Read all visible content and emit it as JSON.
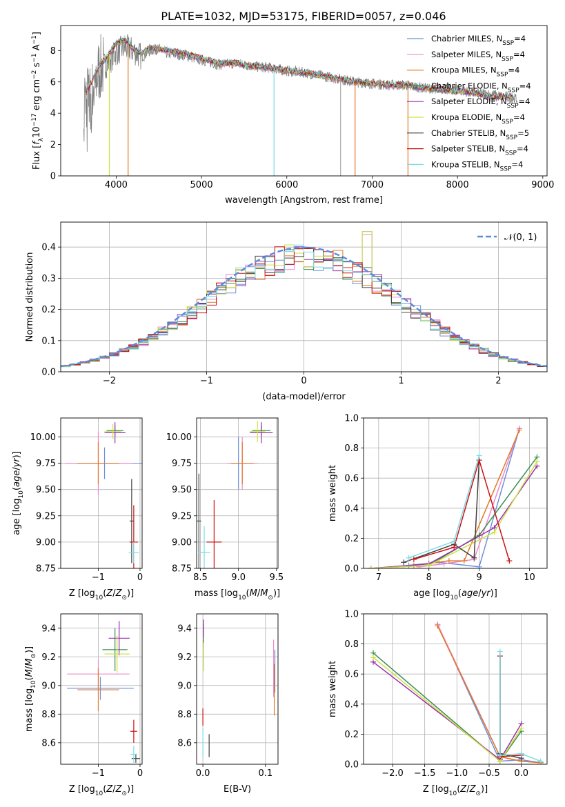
{
  "figure_title": "PLATE=1032, MJD=53175, FIBERID=0057, z=0.046",
  "models": [
    {
      "name": "Chabrier MILES",
      "nssp": "4",
      "color": "#6f8fdc"
    },
    {
      "name": "Salpeter MILES",
      "nssp": "4",
      "color": "#ee88c8"
    },
    {
      "name": "Kroupa MILES",
      "nssp": "4",
      "color": "#e07828"
    },
    {
      "name": "Chabrier ELODIE",
      "nssp": "4",
      "color": "#3c8c50"
    },
    {
      "name": "Salpeter ELODIE",
      "nssp": "4",
      "color": "#9a2fb0"
    },
    {
      "name": "Kroupa ELODIE",
      "nssp": "4",
      "color": "#cce040"
    },
    {
      "name": "Chabrier STELIB",
      "nssp": "5",
      "color": "#404040"
    },
    {
      "name": "Salpeter STELIB",
      "nssp": "4",
      "color": "#cc1010"
    },
    {
      "name": "Kroupa STELIB",
      "nssp": "4",
      "color": "#7adce6"
    }
  ],
  "chart_data": [
    {
      "id": "spectrum",
      "type": "line",
      "xlabel": "wavelength [Angstrom, rest frame]",
      "ylabel": "Flux [fλ10⁻¹⁷ erg cm⁻² s⁻¹ A⁻¹]",
      "xlim": [
        3350,
        9050
      ],
      "ylim": [
        0,
        9.6
      ],
      "xticks": [
        "4000",
        "5000",
        "6000",
        "7000",
        "8000",
        "9000"
      ],
      "yticks": [
        "0",
        "2",
        "4",
        "6",
        "8"
      ],
      "data_color": "#808080",
      "data_range": [
        3620,
        8700
      ],
      "data_points": [
        [
          3620,
          5.2
        ],
        [
          3700,
          4.9
        ],
        [
          3800,
          6.8
        ],
        [
          3900,
          7.2
        ],
        [
          4000,
          7.9
        ],
        [
          4100,
          8.2
        ],
        [
          4200,
          8.0
        ],
        [
          4300,
          7.6
        ],
        [
          4400,
          8.0
        ],
        [
          4500,
          8.1
        ],
        [
          4600,
          7.8
        ],
        [
          4800,
          7.7
        ],
        [
          5000,
          7.4
        ],
        [
          5200,
          7.1
        ],
        [
          5400,
          7.2
        ],
        [
          5600,
          7.0
        ],
        [
          5800,
          6.9
        ],
        [
          6000,
          6.7
        ],
        [
          6200,
          6.6
        ],
        [
          6400,
          6.4
        ],
        [
          6600,
          6.2
        ],
        [
          6800,
          6.0
        ],
        [
          7000,
          5.9
        ],
        [
          7200,
          5.8
        ],
        [
          7400,
          5.8
        ],
        [
          7600,
          5.6
        ],
        [
          7800,
          5.6
        ],
        [
          8000,
          5.5
        ],
        [
          8200,
          5.3
        ],
        [
          8400,
          5.2
        ],
        [
          8600,
          5.0
        ],
        [
          8700,
          4.9
        ]
      ],
      "model_range": [
        3650,
        8650
      ],
      "model_points": [
        [
          3650,
          5.3
        ],
        [
          3800,
          7.0
        ],
        [
          3900,
          7.6
        ],
        [
          4000,
          8.5
        ],
        [
          4100,
          8.7
        ],
        [
          4200,
          8.1
        ],
        [
          4300,
          7.8
        ],
        [
          4400,
          8.2
        ],
        [
          4600,
          8.0
        ],
        [
          4800,
          7.8
        ],
        [
          5000,
          7.5
        ],
        [
          5200,
          7.2
        ],
        [
          5400,
          7.2
        ],
        [
          5600,
          7.0
        ],
        [
          5800,
          6.9
        ],
        [
          6000,
          6.7
        ],
        [
          6200,
          6.6
        ],
        [
          6400,
          6.4
        ],
        [
          6600,
          6.2
        ],
        [
          6800,
          6.0
        ],
        [
          7000,
          5.9
        ],
        [
          7200,
          5.8
        ],
        [
          7400,
          5.8
        ],
        [
          7600,
          5.6
        ],
        [
          7800,
          5.5
        ],
        [
          8000,
          5.4
        ],
        [
          8200,
          5.3
        ],
        [
          8400,
          5.0
        ],
        [
          8650,
          5.1
        ]
      ],
      "spikes": [
        {
          "x": 3920,
          "color": "#cce040"
        },
        {
          "x": 4140,
          "color": "#e07828"
        },
        {
          "x": 5850,
          "color": "#7adce6"
        },
        {
          "x": 6800,
          "color": "#e07828"
        },
        {
          "x": 7420,
          "color": "#e07828"
        },
        {
          "x": 6630,
          "color": "#aaaaaa"
        }
      ]
    },
    {
      "id": "residuals",
      "type": "step",
      "xlabel": "(data-model)/error",
      "ylabel": "Normed distribution",
      "xlim": [
        -2.5,
        2.5
      ],
      "ylim": [
        0,
        0.48
      ],
      "xticks": [
        "-2",
        "-1",
        "0",
        "1",
        "2"
      ],
      "yticks": [
        "0.0",
        "0.1",
        "0.2",
        "0.3",
        "0.4"
      ],
      "gaussian_label": "N(0, 1)",
      "gaussian_color": "#5c8ad8",
      "bin_width": 0.1
    },
    {
      "id": "age_vs_Z",
      "type": "errorbar",
      "xlabel": "Z [log10(Z/Z⊙)]",
      "ylabel": "age  [log10(age/yr)]",
      "xlim": [
        -1.9,
        0.05
      ],
      "ylim": [
        8.75,
        10.18
      ],
      "xticks": [
        "-1",
        "0"
      ],
      "yticks": [
        "8.75",
        "9.00",
        "9.25",
        "9.50",
        "9.75",
        "10.00"
      ],
      "points": [
        {
          "model": 0,
          "x": -0.85,
          "xerr": 0.95,
          "y": 9.75,
          "yerr": 0.15
        },
        {
          "model": 1,
          "x": -1.0,
          "xerr": 0.8,
          "y": 9.75,
          "yerr": 0.3
        },
        {
          "model": 2,
          "x": -1.0,
          "xerr": 0.5,
          "y": 9.75,
          "yerr": 0.2
        },
        {
          "model": 3,
          "x": -0.6,
          "xerr": 0.2,
          "y": 10.06,
          "yerr": 0.05
        },
        {
          "model": 4,
          "x": -0.6,
          "xerr": 0.25,
          "y": 10.04,
          "yerr": 0.1
        },
        {
          "model": 5,
          "x": -0.65,
          "xerr": 0.2,
          "y": 10.05,
          "yerr": 0.07
        },
        {
          "model": 6,
          "x": -0.2,
          "xerr": 0.05,
          "y": 9.2,
          "yerr": 0.4
        },
        {
          "model": 7,
          "x": -0.15,
          "xerr": 0.1,
          "y": 9.0,
          "yerr": 0.35
        },
        {
          "model": 8,
          "x": -0.15,
          "xerr": 0.12,
          "y": 8.9,
          "yerr": 0.1
        }
      ]
    },
    {
      "id": "age_vs_mass",
      "type": "errorbar",
      "xlabel": "mass [log10(M/M⊙)]",
      "ylabel": "",
      "xlim": [
        8.45,
        9.52
      ],
      "ylim": [
        8.75,
        10.18
      ],
      "xticks": [
        "8.5",
        "9.0",
        "9.5"
      ],
      "yticks": [
        "8.75",
        "9.00",
        "9.25",
        "9.50",
        "9.75",
        "10.00"
      ],
      "points": [
        {
          "model": 0,
          "x": 9.0,
          "xerr": 0.1,
          "y": 9.75,
          "yerr": 0.25
        },
        {
          "model": 1,
          "x": 9.05,
          "xerr": 0.2,
          "y": 9.75,
          "yerr": 0.25
        },
        {
          "model": 2,
          "x": 9.05,
          "xerr": 0.15,
          "y": 9.75,
          "yerr": 0.2
        },
        {
          "model": 3,
          "x": 9.3,
          "xerr": 0.12,
          "y": 10.06,
          "yerr": 0.05
        },
        {
          "model": 4,
          "x": 9.3,
          "xerr": 0.15,
          "y": 10.04,
          "yerr": 0.1
        },
        {
          "model": 5,
          "x": 9.25,
          "xerr": 0.1,
          "y": 10.05,
          "yerr": 0.1
        },
        {
          "model": 6,
          "x": 8.48,
          "xerr": 0.03,
          "y": 9.2,
          "yerr": 0.45
        },
        {
          "model": 7,
          "x": 8.68,
          "xerr": 0.1,
          "y": 9.0,
          "yerr": 0.4
        },
        {
          "model": 8,
          "x": 8.55,
          "xerr": 0.08,
          "y": 8.9,
          "yerr": 0.25
        }
      ]
    },
    {
      "id": "massweight_vs_age",
      "type": "line",
      "xlabel": "age  [log10(age/yr)]",
      "ylabel": "mass weight",
      "xlim": [
        6.7,
        10.35
      ],
      "ylim": [
        0,
        1.0
      ],
      "xticks": [
        "7",
        "8",
        "9",
        "10"
      ],
      "yticks": [
        "0.0",
        "0.2",
        "0.4",
        "0.6",
        "0.8",
        "1.0"
      ],
      "series": [
        {
          "model": 0,
          "x": [
            7.6,
            8.2,
            9.0,
            9.8
          ],
          "y": [
            0.02,
            0.04,
            0.01,
            0.93
          ]
        },
        {
          "model": 1,
          "x": [
            7.8,
            8.3,
            8.9,
            9.8
          ],
          "y": [
            0.01,
            0.03,
            0.06,
            0.93
          ]
        },
        {
          "model": 2,
          "x": [
            7.7,
            8.4,
            8.7,
            9.8
          ],
          "y": [
            0.02,
            0.05,
            0.05,
            0.92
          ]
        },
        {
          "model": 3,
          "x": [
            6.85,
            8.0,
            9.0,
            10.15
          ],
          "y": [
            0.0,
            0.02,
            0.22,
            0.74
          ]
        },
        {
          "model": 4,
          "x": [
            6.85,
            8.0,
            9.3,
            10.15
          ],
          "y": [
            0.0,
            0.03,
            0.27,
            0.68
          ]
        },
        {
          "model": 5,
          "x": [
            6.85,
            8.0,
            9.3,
            10.15
          ],
          "y": [
            0.0,
            0.02,
            0.24,
            0.71
          ]
        },
        {
          "model": 6,
          "x": [
            7.5,
            8.5,
            8.9,
            9.0
          ],
          "y": [
            0.04,
            0.16,
            0.07,
            0.72
          ]
        },
        {
          "model": 7,
          "x": [
            7.7,
            8.5,
            9.0,
            9.6
          ],
          "y": [
            0.06,
            0.14,
            0.72,
            0.05
          ]
        },
        {
          "model": 8,
          "x": [
            7.6,
            8.5,
            9.0
          ],
          "y": [
            0.07,
            0.18,
            0.75
          ]
        }
      ]
    },
    {
      "id": "mass_vs_Z",
      "type": "errorbar",
      "xlabel": "Z [log10(Z/Z⊙)]",
      "ylabel": "mass [log10(M/M⊙)]",
      "xlim": [
        -1.9,
        0.05
      ],
      "ylim": [
        8.45,
        9.5
      ],
      "xticks": [
        "-1",
        "0"
      ],
      "yticks": [
        "8.6",
        "8.8",
        "9.0",
        "9.2",
        "9.4"
      ],
      "points": [
        {
          "model": 0,
          "x": -0.95,
          "xerr": 0.8,
          "y": 8.98,
          "yerr": 0.08
        },
        {
          "model": 1,
          "x": -1.0,
          "xerr": 0.75,
          "y": 9.08,
          "yerr": 0.1
        },
        {
          "model": 2,
          "x": -1.0,
          "xerr": 0.5,
          "y": 8.97,
          "yerr": 0.15
        },
        {
          "model": 3,
          "x": -0.6,
          "xerr": 0.3,
          "y": 9.25,
          "yerr": 0.15
        },
        {
          "model": 4,
          "x": -0.5,
          "xerr": 0.25,
          "y": 9.33,
          "yerr": 0.12
        },
        {
          "model": 5,
          "x": -0.55,
          "xerr": 0.3,
          "y": 9.22,
          "yerr": 0.13
        },
        {
          "model": 6,
          "x": -0.1,
          "xerr": 0.1,
          "y": 8.49,
          "yerr": 0.03
        },
        {
          "model": 7,
          "x": -0.15,
          "xerr": 0.08,
          "y": 8.68,
          "yerr": 0.08
        },
        {
          "model": 8,
          "x": -0.15,
          "xerr": 0.08,
          "y": 8.52,
          "yerr": 0.06
        }
      ]
    },
    {
      "id": "mass_vs_EBV",
      "type": "errorbar",
      "xlabel": "E(B-V)",
      "ylabel": "",
      "xlim": [
        -0.01,
        0.12
      ],
      "ylim": [
        8.45,
        9.5
      ],
      "xticks": [
        "0.0",
        "0.1"
      ],
      "yticks": [
        "8.6",
        "8.8",
        "9.0",
        "9.2",
        "9.4"
      ],
      "points": [
        {
          "model": 0,
          "x": 0.115,
          "xerr": 0.0,
          "y": 9.1,
          "yerr": 0.15
        },
        {
          "model": 1,
          "x": 0.113,
          "xerr": 0.0,
          "y": 9.12,
          "yerr": 0.2
        },
        {
          "model": 2,
          "x": 0.114,
          "xerr": 0.0,
          "y": 8.97,
          "yerr": 0.18
        },
        {
          "model": 3,
          "x": 0.001,
          "xerr": 0.0,
          "y": 9.35,
          "yerr": 0.08
        },
        {
          "model": 4,
          "x": 0.001,
          "xerr": 0.0,
          "y": 9.4,
          "yerr": 0.06
        },
        {
          "model": 5,
          "x": 0.001,
          "xerr": 0.0,
          "y": 9.2,
          "yerr": 0.1
        },
        {
          "model": 6,
          "x": 0.01,
          "xerr": 0.0,
          "y": 8.58,
          "yerr": 0.08
        },
        {
          "model": 7,
          "x": 0.0,
          "xerr": 0.0,
          "y": 8.78,
          "yerr": 0.06
        },
        {
          "model": 8,
          "x": 0.0,
          "xerr": 0.0,
          "y": 8.6,
          "yerr": 0.1
        }
      ]
    },
    {
      "id": "massweight_vs_Z",
      "type": "line",
      "xlabel": "Z [log10(Z/Z⊙)]",
      "ylabel": "mass weight",
      "xlim": [
        -2.45,
        0.4
      ],
      "ylim": [
        0,
        1.0
      ],
      "xticks": [
        "-2.0",
        "-1.5",
        "-1.0",
        "-0.5",
        "0.0"
      ],
      "yticks": [
        "0.0",
        "0.2",
        "0.4",
        "0.6",
        "0.8",
        "1.0"
      ],
      "series": [
        {
          "model": 0,
          "x": [
            -1.3,
            -0.33,
            0.0,
            0.3
          ],
          "y": [
            0.93,
            0.02,
            0.03,
            0.01
          ]
        },
        {
          "model": 1,
          "x": [
            -1.3,
            -0.33,
            0.0,
            0.3
          ],
          "y": [
            0.93,
            0.05,
            0.02,
            0.01
          ]
        },
        {
          "model": 2,
          "x": [
            -1.3,
            -0.33,
            0.0,
            0.3
          ],
          "y": [
            0.92,
            0.05,
            0.02,
            0.01
          ]
        },
        {
          "model": 3,
          "x": [
            -2.3,
            -0.33,
            0.0
          ],
          "y": [
            0.74,
            0.02,
            0.22
          ]
        },
        {
          "model": 4,
          "x": [
            -2.3,
            -0.33,
            0.0
          ],
          "y": [
            0.68,
            0.03,
            0.27
          ]
        },
        {
          "model": 5,
          "x": [
            -2.3,
            -0.33,
            0.0
          ],
          "y": [
            0.71,
            0.02,
            0.24
          ]
        },
        {
          "model": 6,
          "x": [
            -0.33,
            -0.33,
            0.0
          ],
          "y": [
            0.72,
            0.07,
            0.04
          ]
        },
        {
          "model": 7,
          "x": [
            -0.33,
            -0.33,
            0.0
          ],
          "y": [
            0.72,
            0.05,
            0.06
          ]
        },
        {
          "model": 8,
          "x": [
            -0.33,
            -0.33,
            0.0,
            0.3
          ],
          "y": [
            0.75,
            0.06,
            0.07,
            0.02
          ]
        }
      ]
    }
  ]
}
